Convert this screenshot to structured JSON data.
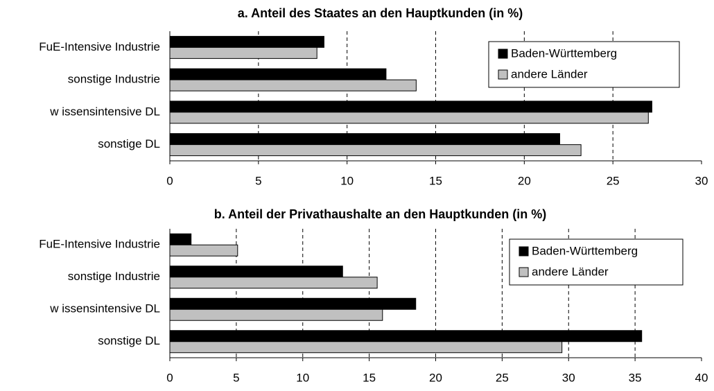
{
  "chart_data": [
    {
      "type": "hbar",
      "title": "a. Anteil des Staates an den Hauptkunden (in %)",
      "categories": [
        "FuE-Intensive Industrie",
        "sonstige Industrie",
        "w issensintensive DL",
        "sonstige DL"
      ],
      "series": [
        {
          "name": "Baden-Württemberg",
          "color": "#000000",
          "values": [
            8.7,
            12.2,
            27.2,
            22.0
          ]
        },
        {
          "name": "andere Länder",
          "color": "#c0c0c0",
          "values": [
            8.3,
            13.9,
            27.0,
            23.2
          ]
        }
      ],
      "xlim": [
        0,
        30
      ],
      "xticks": [
        0,
        5,
        10,
        15,
        20,
        25,
        30
      ],
      "grid": true,
      "legend": "upper right"
    },
    {
      "type": "hbar",
      "title": "b. Anteil der Privathaushalte an den Hauptkunden (in %)",
      "categories": [
        "FuE-Intensive Industrie",
        "sonstige Industrie",
        "w issensintensive DL",
        "sonstige DL"
      ],
      "series": [
        {
          "name": "Baden-Württemberg",
          "color": "#000000",
          "values": [
            1.6,
            13.0,
            18.5,
            35.5
          ]
        },
        {
          "name": "andere Länder",
          "color": "#c0c0c0",
          "values": [
            5.1,
            15.6,
            16.0,
            29.5
          ]
        }
      ],
      "xlim": [
        0,
        40
      ],
      "xticks": [
        0,
        5,
        10,
        15,
        20,
        25,
        30,
        35,
        40
      ],
      "grid": true,
      "legend": "upper right"
    }
  ]
}
